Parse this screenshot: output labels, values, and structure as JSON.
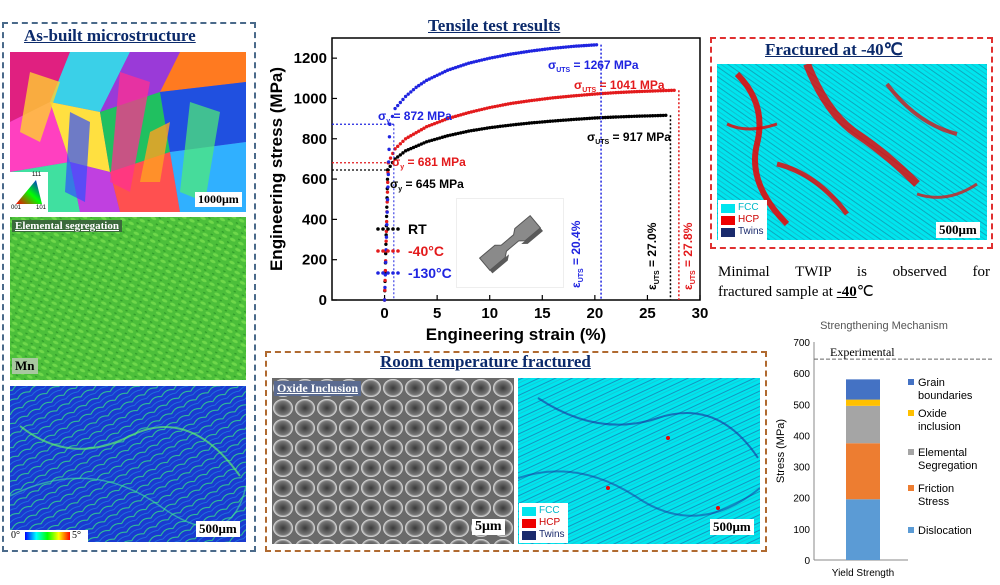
{
  "left_panel": {
    "title": "As-built microstructure",
    "ipf_scale": "1000μm",
    "ipf_key": {
      "top": "111",
      "left": "001",
      "right": "101"
    },
    "segregation_label": "Elemental segregation",
    "element": "Mn",
    "kam_scale": "500μm",
    "kam_range": {
      "min": "0°",
      "max": "5°"
    }
  },
  "tensile_panel": {
    "title": "Tensile test results",
    "legend": [
      {
        "label": "RT",
        "color": "#000000"
      },
      {
        "label": "-40°C",
        "color": "#e31a1c"
      },
      {
        "label": "-130°C",
        "color": "#1f24e0"
      }
    ],
    "annotations": {
      "uts_130": "σ",
      "uts_130_sub": "UTS",
      "uts_130_val": " = 1267 MPa",
      "uts_40": "σ",
      "uts_40_sub": "UTS",
      "uts_40_val": " = 1041 MPa",
      "uts_rt": "σ",
      "uts_rt_sub": "UTS",
      "uts_rt_val": " = 917 MPa",
      "ys_130": "σ",
      "ys_130_sub": "y",
      "ys_130_val": " = 872 MPa",
      "ys_40": "σ",
      "ys_40_sub": "y",
      "ys_40_val": " = 681 MPa",
      "ys_rt": "σ",
      "ys_rt_sub": "y",
      "ys_rt_val": " = 645 MPa",
      "eu_130": "ε",
      "eu_130_sub": "UTS",
      "eu_130_val": " = 20.4%",
      "eu_rt": "ε",
      "eu_rt_sub": "UTS",
      "eu_rt_val": " = 27.0%",
      "eu_40": "ε",
      "eu_40_sub": "UTS",
      "eu_40_val": " = 27.8%"
    }
  },
  "chart_data": [
    {
      "type": "scatter",
      "title": "Tensile test results",
      "xlabel": "Engineering strain (%)",
      "ylabel": "Engineering stress (MPa)",
      "xlim": [
        -5,
        30
      ],
      "ylim": [
        0,
        1300
      ],
      "xticks": [
        0,
        5,
        10,
        15,
        20,
        25,
        30
      ],
      "yticks": [
        0,
        200,
        400,
        600,
        800,
        1000,
        1200
      ],
      "grid": false,
      "legend_position": "bottom-left",
      "series": [
        {
          "name": "RT",
          "color": "#000000",
          "yield": 645,
          "uts": 917,
          "uniform_elongation": 27.0,
          "elastic_end": [
            0.3,
            645
          ],
          "x": [
            0.3,
            1,
            2,
            4,
            6,
            8,
            10,
            12,
            14,
            16,
            18,
            20,
            22,
            24,
            26,
            27.0
          ],
          "y": [
            645,
            700,
            740,
            785,
            815,
            838,
            855,
            868,
            879,
            888,
            896,
            903,
            908,
            912,
            915,
            917
          ]
        },
        {
          "name": "-40°C",
          "color": "#e31a1c",
          "yield": 681,
          "uts": 1041,
          "uniform_elongation": 27.8,
          "elastic_end": [
            0.35,
            681
          ],
          "x": [
            0.35,
            1,
            2,
            4,
            6,
            8,
            10,
            12,
            14,
            16,
            18,
            20,
            22,
            24,
            26,
            27.8
          ],
          "y": [
            681,
            750,
            800,
            860,
            900,
            930,
            955,
            975,
            990,
            1003,
            1013,
            1022,
            1029,
            1034,
            1038,
            1041
          ]
        },
        {
          "name": "-130°C",
          "color": "#1f24e0",
          "yield": 872,
          "uts": 1267,
          "uniform_elongation": 20.4,
          "elastic_end": [
            0.5,
            872
          ],
          "x": [
            0.5,
            1,
            2,
            3,
            4,
            6,
            8,
            10,
            12,
            14,
            16,
            18,
            20.4
          ],
          "y": [
            872,
            950,
            1010,
            1055,
            1090,
            1140,
            1175,
            1200,
            1220,
            1236,
            1249,
            1259,
            1267
          ]
        }
      ]
    },
    {
      "type": "bar",
      "title": "Strengthening Mechanism",
      "categories": [
        "Yield Strength"
      ],
      "ylabel": "Stress (MPa)",
      "ylim": [
        0,
        700
      ],
      "yticks": [
        0,
        100,
        200,
        300,
        400,
        500,
        600,
        700
      ],
      "stacked": true,
      "experimental_line": 645,
      "experimental_label": "Experimental",
      "series": [
        {
          "name": "Dislocation",
          "color": "#5b9bd5",
          "values": [
            195
          ]
        },
        {
          "name": "Friction Stress",
          "color": "#ed7d31",
          "values": [
            180
          ]
        },
        {
          "name": "Elemental Segregation",
          "color": "#a5a5a5",
          "values": [
            120
          ]
        },
        {
          "name": "Oxide inclusion",
          "color": "#ffc000",
          "values": [
            20
          ]
        },
        {
          "name": "Grain boundaries",
          "color": "#4472c4",
          "values": [
            65
          ]
        }
      ],
      "legend_position": "right",
      "legend_order": [
        {
          "line1": "Grain",
          "line2": "boundaries",
          "color": "#4472c4"
        },
        {
          "line1": "Oxide",
          "line2": "inclusion",
          "color": "#ffc000"
        },
        {
          "line1": "Elemental",
          "line2": "Segregation",
          "color": "#a5a5a5"
        },
        {
          "line1": "Friction",
          "line2": "Stress",
          "color": "#ed7d31"
        },
        {
          "line1": "Dislocation",
          "line2": "",
          "color": "#5b9bd5"
        }
      ]
    }
  ],
  "fractured_panel": {
    "title": "Fractured at -40℃",
    "scale": "500μm",
    "legend": [
      {
        "label": "FCC",
        "color": "#00e5ee"
      },
      {
        "label": "HCP",
        "color": "#ee0000"
      },
      {
        "label": "Twins",
        "color": "#1a2a6c"
      }
    ],
    "caption_line1": "Minimal TWIP is observed for",
    "caption_line2a": "fractured sample at ",
    "caption_line2b": "-40",
    "caption_line2c": "℃"
  },
  "rt_panel": {
    "title": "Room temperature fractured",
    "oxide_label": "Oxide Inclusion",
    "sem_scale": "5μm",
    "ebsd_scale": "500μm",
    "legend": [
      {
        "label": "FCC",
        "color": "#00e5ee"
      },
      {
        "label": "HCP",
        "color": "#ee0000"
      },
      {
        "label": "Twins",
        "color": "#1a2a6c"
      }
    ]
  },
  "colors": {
    "left_border": "#4a6a8a",
    "red_border": "#e03030",
    "brown_border": "#b06a30"
  }
}
